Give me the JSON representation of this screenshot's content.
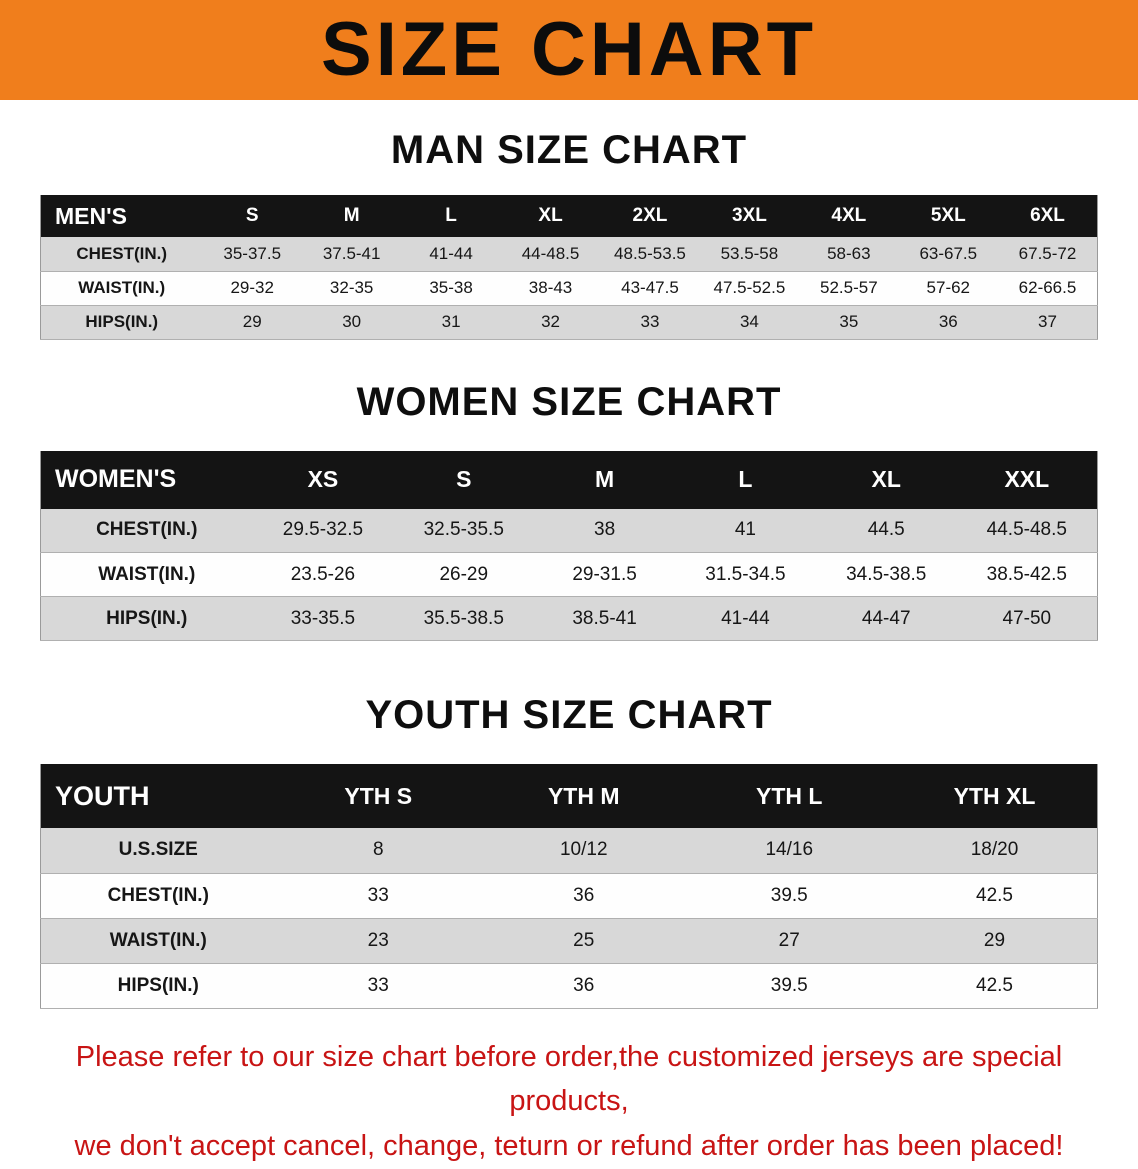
{
  "banner": {
    "title": "SIZE CHART"
  },
  "sections": [
    {
      "id": "men",
      "heading": "MAN SIZE CHART",
      "label_col": "MEN'S",
      "columns": [
        "S",
        "M",
        "L",
        "XL",
        "2XL",
        "3XL",
        "4XL",
        "5XL",
        "6XL"
      ],
      "rows": [
        {
          "label": "CHEST(IN.)",
          "values": [
            "35-37.5",
            "37.5-41",
            "41-44",
            "44-48.5",
            "48.5-53.5",
            "53.5-58",
            "58-63",
            "63-67.5",
            "67.5-72"
          ]
        },
        {
          "label": "WAIST(IN.)",
          "values": [
            "29-32",
            "32-35",
            "35-38",
            "38-43",
            "43-47.5",
            "47.5-52.5",
            "52.5-57",
            "57-62",
            "62-66.5"
          ]
        },
        {
          "label": "HIPS(IN.)",
          "values": [
            "29",
            "30",
            "31",
            "32",
            "33",
            "34",
            "35",
            "36",
            "37"
          ]
        }
      ]
    },
    {
      "id": "women",
      "heading": "WOMEN SIZE CHART",
      "label_col": "WOMEN'S",
      "columns": [
        "XS",
        "S",
        "M",
        "L",
        "XL",
        "XXL"
      ],
      "rows": [
        {
          "label": "CHEST(IN.)",
          "values": [
            "29.5-32.5",
            "32.5-35.5",
            "38",
            "41",
            "44.5",
            "44.5-48.5"
          ]
        },
        {
          "label": "WAIST(IN.)",
          "values": [
            "23.5-26",
            "26-29",
            "29-31.5",
            "31.5-34.5",
            "34.5-38.5",
            "38.5-42.5"
          ]
        },
        {
          "label": "HIPS(IN.)",
          "values": [
            "33-35.5",
            "35.5-38.5",
            "38.5-41",
            "41-44",
            "44-47",
            "47-50"
          ]
        }
      ]
    },
    {
      "id": "youth",
      "heading": "YOUTH SIZE CHART",
      "label_col": "YOUTH",
      "columns": [
        "YTH S",
        "YTH M",
        "YTH L",
        "YTH XL"
      ],
      "rows": [
        {
          "label": "U.S.SIZE",
          "values": [
            "8",
            "10/12",
            "14/16",
            "18/20"
          ]
        },
        {
          "label": "CHEST(IN.)",
          "values": [
            "33",
            "36",
            "39.5",
            "42.5"
          ]
        },
        {
          "label": "WAIST(IN.)",
          "values": [
            "23",
            "25",
            "27",
            "29"
          ]
        },
        {
          "label": "HIPS(IN.)",
          "values": [
            "33",
            "36",
            "39.5",
            "42.5"
          ]
        }
      ]
    }
  ],
  "footer": {
    "line1": "Please refer to our size chart before order,the customized jerseys are special products,",
    "line2": "we don't accept cancel, change, teturn or refund after order has been placed!"
  },
  "colors": {
    "banner_bg": "#F07E1C",
    "header_row_bg": "#141414",
    "stripe_bg": "#D8D8D8",
    "footer_text": "#C81414"
  }
}
